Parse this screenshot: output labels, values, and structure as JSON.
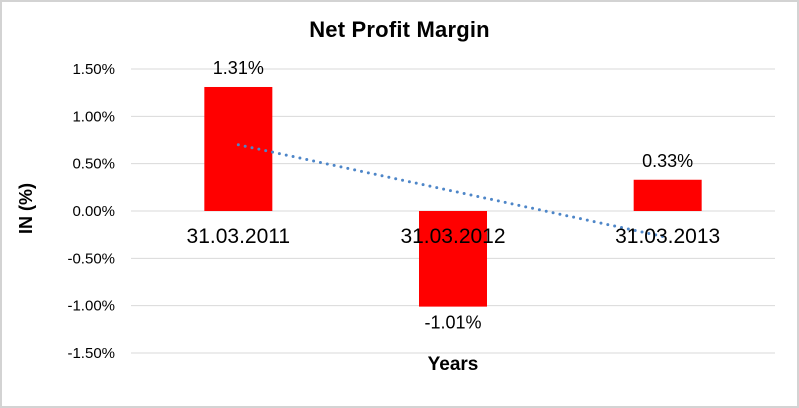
{
  "chart_data": {
    "type": "bar",
    "title": "Net Profit Margin",
    "xlabel": "Years",
    "ylabel": "IN (%)",
    "categories": [
      "31.03.2011",
      "31.03.2012",
      "31.03.2013"
    ],
    "values": [
      1.31,
      -1.01,
      0.33
    ],
    "data_labels": [
      "1.31%",
      "-1.01%",
      "0.33%"
    ],
    "y_ticks": [
      1.5,
      1.0,
      0.5,
      0.0,
      -0.5,
      -1.0,
      -1.5
    ],
    "y_tick_labels": [
      "1.50%",
      "1.00%",
      "0.50%",
      "0.00%",
      "-0.50%",
      "-1.00%",
      "-1.50%"
    ],
    "ylim": [
      -1.5,
      1.5
    ],
    "grid": true,
    "legend_position": "none",
    "bar_color": "#FF0000",
    "gridline_color": "#D9D9D9",
    "text_color": "#000000",
    "trendline": {
      "type": "linear",
      "style": "dotted",
      "color": "#4E86C8",
      "start_value": 0.7,
      "end_value": -0.28
    }
  }
}
